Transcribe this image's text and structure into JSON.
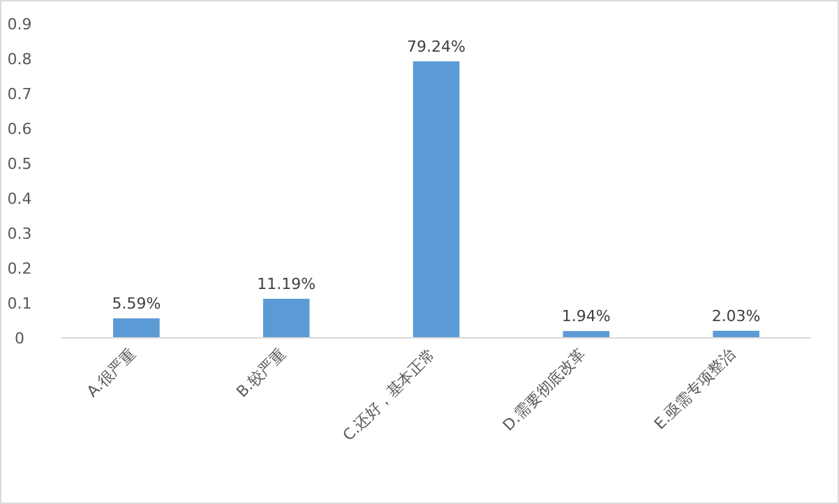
{
  "chart_data": {
    "type": "bar",
    "categories": [
      "A.很严重",
      "B.较严重",
      "C.还好，基本正常",
      "D.需要彻底改革",
      "E.亟需专项整治"
    ],
    "values": [
      0.0559,
      0.1119,
      0.7924,
      0.0194,
      0.0203
    ],
    "value_labels": [
      "5.59%",
      "11.19%",
      "79.24%",
      "1.94%",
      "2.03%"
    ],
    "color": "#5b9bd5",
    "ylim": [
      0,
      0.9
    ],
    "yticks": [
      0,
      0.1,
      0.2,
      0.3,
      0.4,
      0.5,
      0.6,
      0.7,
      0.8,
      0.9
    ],
    "grid": false
  }
}
